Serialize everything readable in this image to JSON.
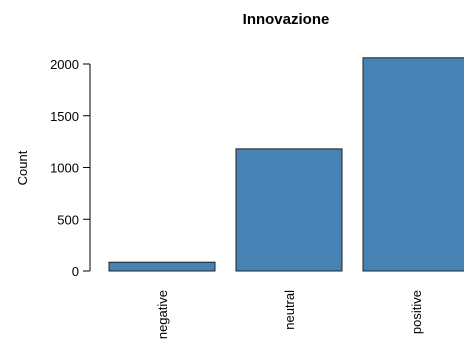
{
  "chart_data": {
    "type": "bar",
    "title": "Innovazione",
    "xlabel": "",
    "ylabel": "Count",
    "categories": [
      "negative",
      "neutral",
      "positive"
    ],
    "values": [
      85,
      1180,
      2060
    ],
    "ylim": [
      0,
      2100
    ],
    "yticks": [
      0,
      500,
      1000,
      1500,
      2000
    ],
    "bar_color": "#4682B4",
    "grid": false,
    "legend": "none"
  }
}
